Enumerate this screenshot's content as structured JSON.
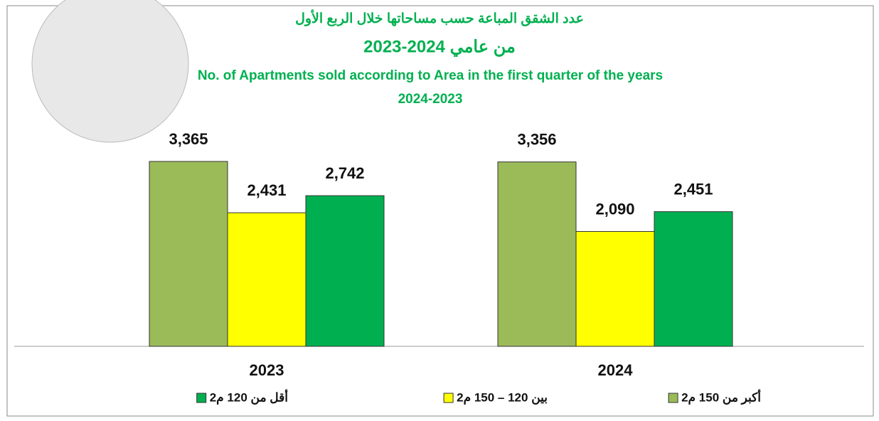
{
  "chart_data": {
    "type": "bar",
    "title": [
      "عدد الشقق المباعة حسب مساحاتها خلال الربع الأول",
      "من عامي 2024-2023",
      "No. of Apartments sold according to Area in the first quarter of the years",
      "2024-2023"
    ],
    "categories": [
      "2023",
      "2024"
    ],
    "series": [
      {
        "name": "أكبر من 150 م2",
        "color": "#9bbb59",
        "values": [
          3365,
          3356
        ],
        "value_labels": [
          "3,365",
          "3,356"
        ]
      },
      {
        "name": "بين 120 – 150 م2",
        "color": "#ffff00",
        "values": [
          2431,
          2090
        ],
        "value_labels": [
          "2,431",
          "2,090"
        ]
      },
      {
        "name": "أقل من 120 م2",
        "color": "#00b050",
        "values": [
          2742,
          2451
        ],
        "value_labels": [
          "2,742",
          "2,451"
        ]
      }
    ]
  }
}
